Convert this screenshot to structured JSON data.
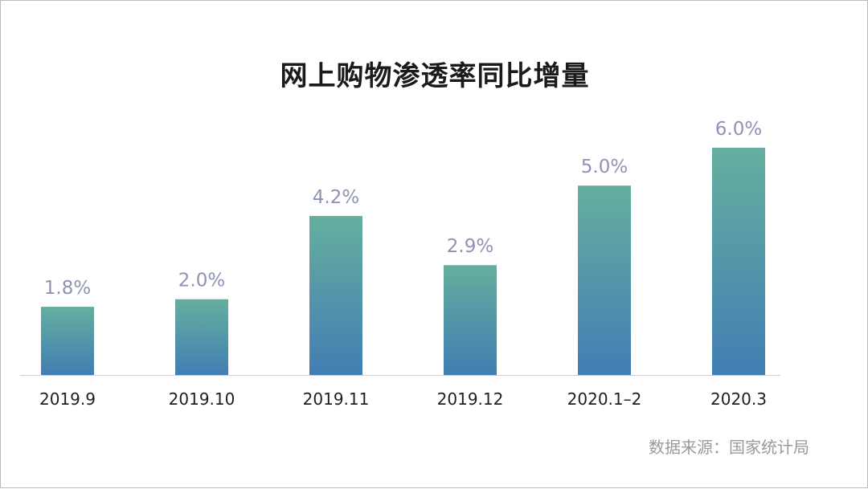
{
  "chart_data": {
    "type": "bar",
    "title": "网上购物渗透率同比增量",
    "categories": [
      "2019.9",
      "2019.10",
      "2019.11",
      "2019.12",
      "2020.1–2",
      "2020.3"
    ],
    "values": [
      1.8,
      2.0,
      4.2,
      2.9,
      5.0,
      6.0
    ],
    "data_labels": [
      "1.8%",
      "2.0%",
      "4.2%",
      "2.9%",
      "5.0%",
      "6.0%"
    ],
    "ylim": [
      0,
      6.0
    ],
    "grid": false,
    "legend": "none",
    "colors": {
      "bar_top": "#66ae9f",
      "bar_bottom": "#427eb3",
      "label": "#8f93b3",
      "axis": "#d0d0d0"
    }
  },
  "source": "数据来源：国家统计局"
}
